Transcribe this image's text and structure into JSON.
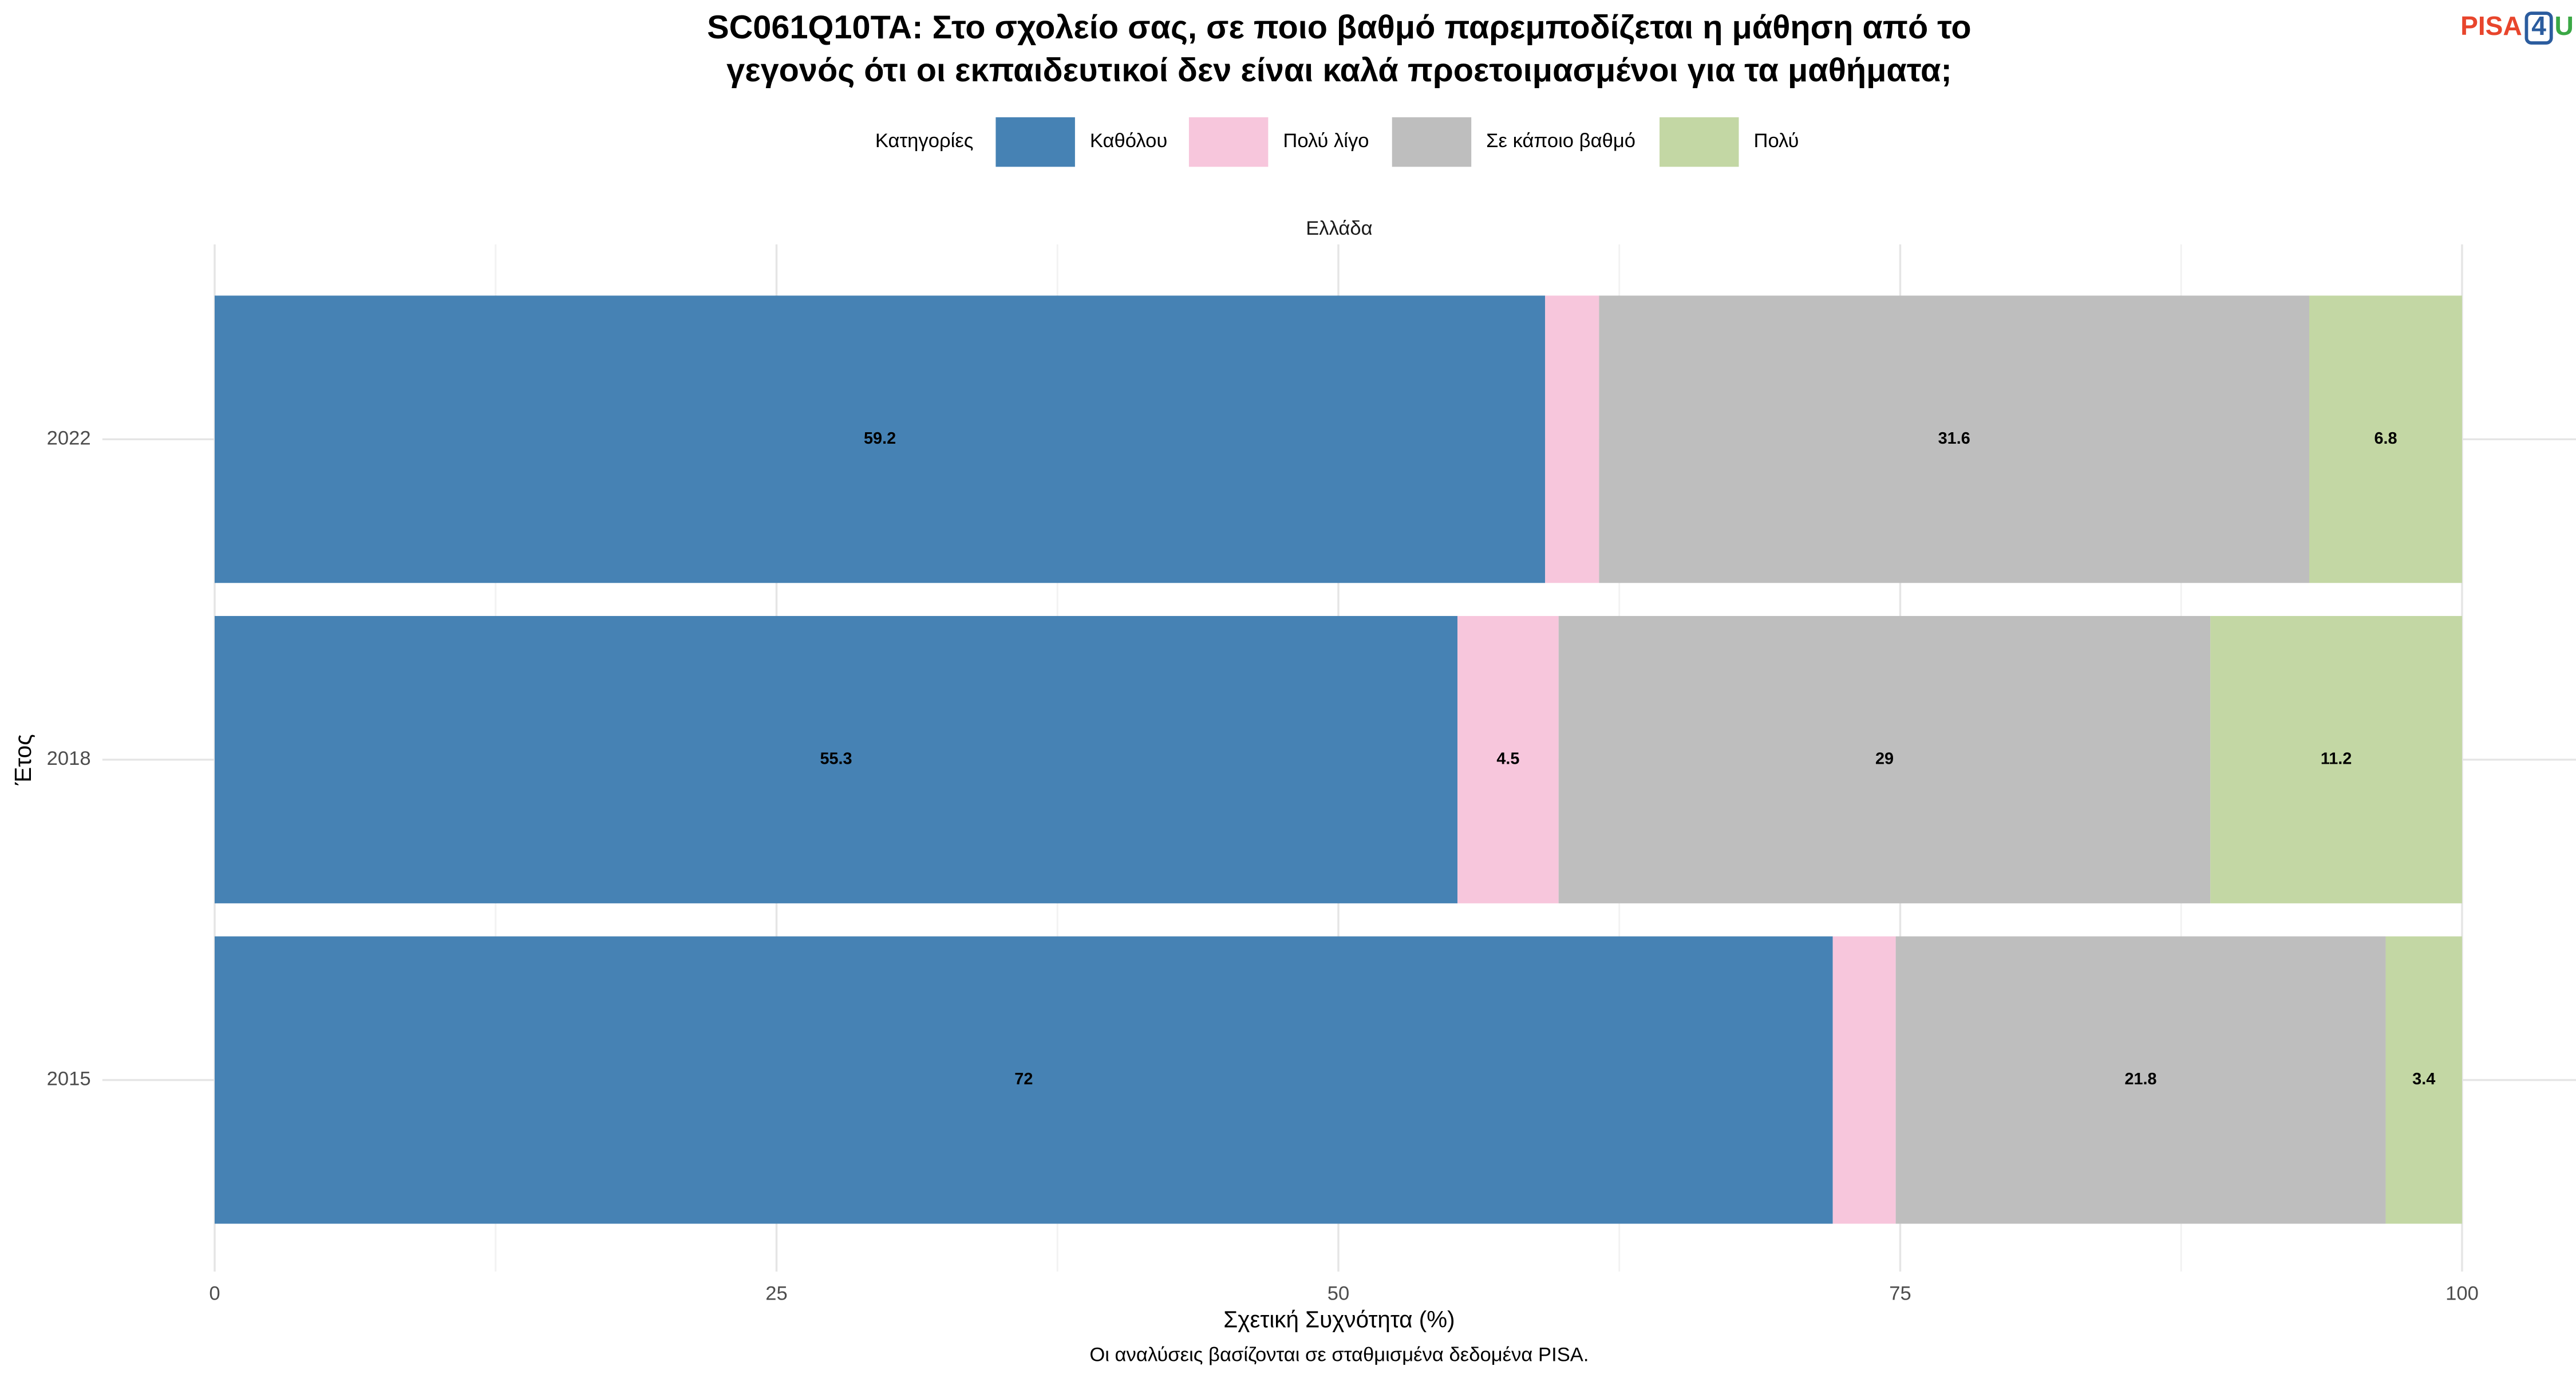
{
  "chart_data": {
    "type": "stacked_barh",
    "title": [
      "SC061Q10TA: Στο σχολείο σας, σε ποιο βαθμό παρεμποδίζεται η μάθηση από το",
      "γεγονός ότι οι εκπαιδευτικοί δεν είναι καλά προετοιμασμένοι για τα μαθήματα;"
    ],
    "logo": [
      "PISA",
      "4",
      "U"
    ],
    "legend_title": "Κατηγορίες",
    "facet_label": "Ελλάδα",
    "xlabel": "Σχετική Συχνότητα (%)",
    "ylabel": "Έτος",
    "caption": "Οι αναλύσεις βασίζονται σε σταθμισμένα δεδομένα PISA.",
    "categories": [
      "2022",
      "2018",
      "2015"
    ],
    "series": [
      {
        "name": "Καθόλου",
        "color": "#4682b4",
        "values": [
          59.2,
          55.3,
          72
        ]
      },
      {
        "name": "Πολύ λίγο",
        "color": "#f7c6dc",
        "values": [
          2.4,
          4.5,
          2.8
        ]
      },
      {
        "name": "Σε κάποιο βαθμό",
        "color": "#bebebe",
        "values": [
          31.6,
          29,
          21.8
        ]
      },
      {
        "name": "Πολύ",
        "color": "#c3d7a4",
        "values": [
          6.8,
          11.2,
          3.4
        ]
      }
    ],
    "xlim": [
      0,
      100
    ],
    "xticks": [
      0,
      25,
      50,
      75,
      100
    ],
    "grid": true
  }
}
